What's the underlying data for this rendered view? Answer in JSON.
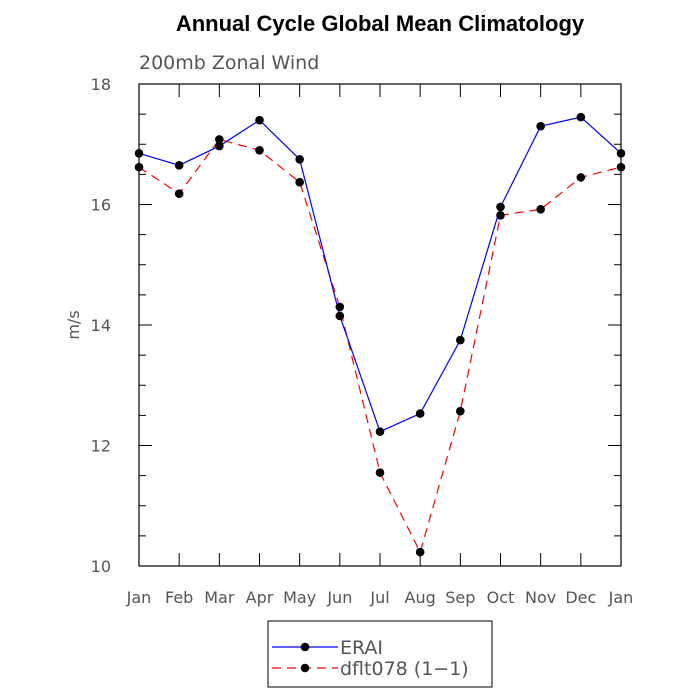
{
  "chart_data": {
    "type": "line",
    "title": "Annual Cycle Global Mean Climatology",
    "subtitle": "200mb Zonal Wind",
    "xlabel": "",
    "ylabel": "m/s",
    "categories": [
      "Jan",
      "Feb",
      "Mar",
      "Apr",
      "May",
      "Jun",
      "Jul",
      "Aug",
      "Sep",
      "Oct",
      "Nov",
      "Dec",
      "Jan"
    ],
    "ylim": [
      10,
      18
    ],
    "yticks": [
      "10",
      "12",
      "14",
      "16",
      "18"
    ],
    "series": [
      {
        "name": "ERAI",
        "color": "#0000ff",
        "dash": "solid",
        "values": [
          16.85,
          16.65,
          16.97,
          17.4,
          16.75,
          14.15,
          12.23,
          12.53,
          13.75,
          15.96,
          17.3,
          17.45,
          16.85
        ]
      },
      {
        "name": "dflt078 (1−1)",
        "color": "#ff0000",
        "dash": "dashed",
        "values": [
          16.62,
          16.18,
          17.08,
          16.9,
          16.37,
          14.3,
          11.55,
          10.23,
          12.57,
          15.82,
          15.92,
          16.45,
          16.62
        ]
      }
    ],
    "legend_position": "bottom"
  }
}
